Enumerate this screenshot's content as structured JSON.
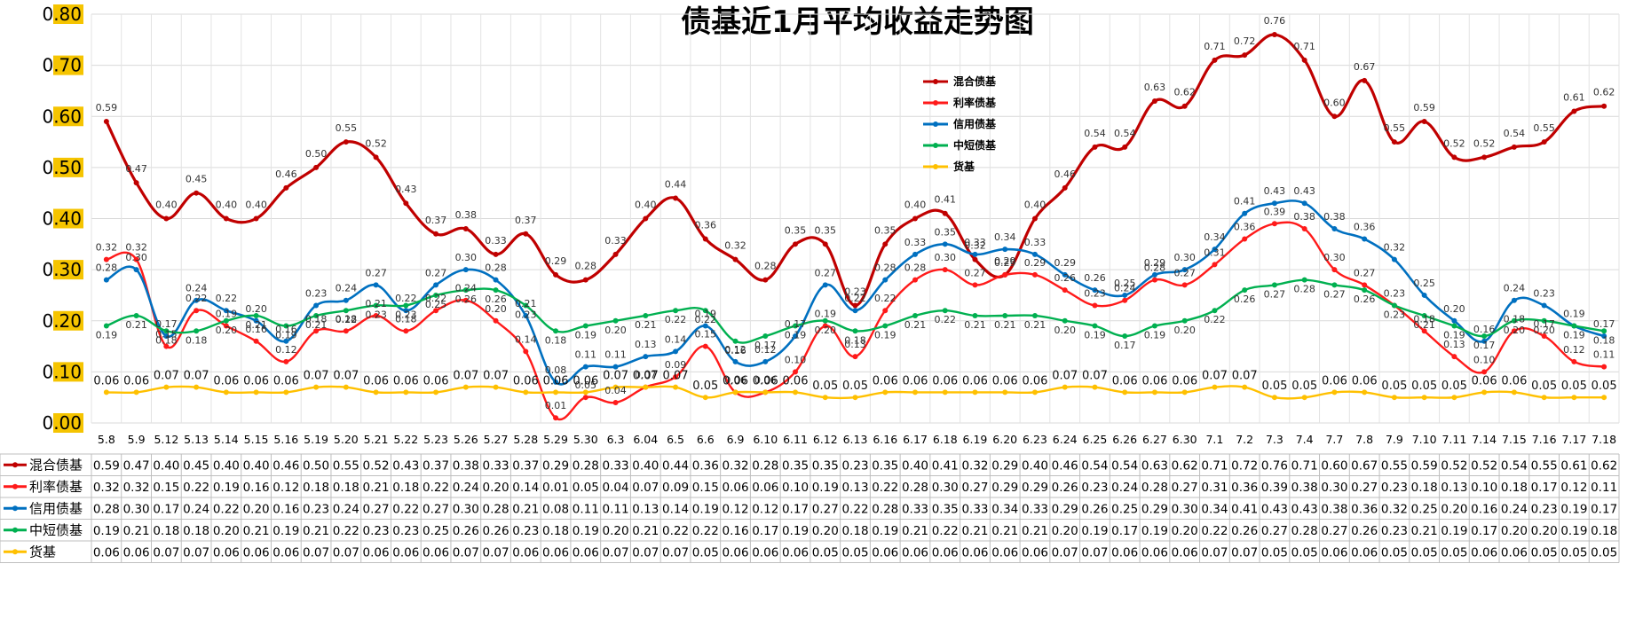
{
  "chart_data": {
    "type": "line",
    "title": "债基近1月平均收益走势图",
    "xlabel": "",
    "ylabel": "",
    "ylim": [
      0,
      0.8
    ],
    "yticks": [
      "0.00",
      "0.10",
      "0.20",
      "0.30",
      "0.40",
      "0.50",
      "0.60",
      "0.70",
      "0.80"
    ],
    "grid": true,
    "legend_position": "top-center",
    "categories": [
      "5.8",
      "5.9",
      "5.12",
      "5.13",
      "5.14",
      "5.15",
      "5.16",
      "5.19",
      "5.20",
      "5.21",
      "5.22",
      "5.23",
      "5.26",
      "5.27",
      "5.28",
      "5.29",
      "5.30",
      "6.3",
      "6.04",
      "6.5",
      "6.6",
      "6.9",
      "6.10",
      "6.11",
      "6.12",
      "6.13",
      "6.16",
      "6.17",
      "6.18",
      "6.19",
      "6.20",
      "6.23",
      "6.24",
      "6.25",
      "6.26",
      "6.27",
      "6.30",
      "7.1",
      "7.2",
      "7.3",
      "7.4",
      "7.7",
      "7.8",
      "7.9",
      "7.10",
      "7.11",
      "7.14",
      "7.15",
      "7.16",
      "7.17",
      "7.18"
    ],
    "series": [
      {
        "name": "混合债基",
        "color": "#c00000",
        "values": [
          0.59,
          0.47,
          0.4,
          0.45,
          0.4,
          0.4,
          0.46,
          0.5,
          0.55,
          0.52,
          0.43,
          0.37,
          0.38,
          0.33,
          0.37,
          0.29,
          0.28,
          0.33,
          0.4,
          0.44,
          0.36,
          0.32,
          0.28,
          0.35,
          0.35,
          0.23,
          0.35,
          0.4,
          0.41,
          0.32,
          0.29,
          0.4,
          0.46,
          0.54,
          0.54,
          0.63,
          0.62,
          0.71,
          0.72,
          0.76,
          0.71,
          0.6,
          0.67,
          0.55,
          0.59,
          0.52,
          0.52,
          0.54,
          0.55,
          0.61,
          0.62
        ]
      },
      {
        "name": "利率债基",
        "color": "#ff1a1a",
        "values": [
          0.32,
          0.32,
          0.15,
          0.22,
          0.19,
          0.16,
          0.12,
          0.18,
          0.18,
          0.21,
          0.18,
          0.22,
          0.24,
          0.2,
          0.14,
          0.01,
          0.05,
          0.04,
          0.07,
          0.09,
          0.15,
          0.06,
          0.06,
          0.1,
          0.19,
          0.13,
          0.22,
          0.28,
          0.3,
          0.27,
          0.29,
          0.29,
          0.26,
          0.23,
          0.24,
          0.28,
          0.27,
          0.31,
          0.36,
          0.39,
          0.38,
          0.3,
          0.27,
          0.23,
          0.18,
          0.13,
          0.1,
          0.18,
          0.17,
          0.12,
          0.11
        ]
      },
      {
        "name": "信用债基",
        "color": "#0070c0",
        "values": [
          0.28,
          0.3,
          0.17,
          0.24,
          0.22,
          0.2,
          0.16,
          0.23,
          0.24,
          0.27,
          0.22,
          0.27,
          0.3,
          0.28,
          0.21,
          0.08,
          0.11,
          0.11,
          0.13,
          0.14,
          0.19,
          0.12,
          0.12,
          0.17,
          0.27,
          0.22,
          0.28,
          0.33,
          0.35,
          0.33,
          0.34,
          0.33,
          0.29,
          0.26,
          0.25,
          0.29,
          0.3,
          0.34,
          0.41,
          0.43,
          0.43,
          0.38,
          0.36,
          0.32,
          0.25,
          0.2,
          0.16,
          0.24,
          0.23,
          0.19,
          0.17
        ]
      },
      {
        "name": "中短债基",
        "color": "#00b050",
        "values": [
          0.19,
          0.21,
          0.18,
          0.18,
          0.2,
          0.21,
          0.19,
          0.21,
          0.22,
          0.23,
          0.23,
          0.25,
          0.26,
          0.26,
          0.23,
          0.18,
          0.19,
          0.2,
          0.21,
          0.22,
          0.22,
          0.16,
          0.17,
          0.19,
          0.2,
          0.18,
          0.19,
          0.21,
          0.22,
          0.21,
          0.21,
          0.21,
          0.2,
          0.19,
          0.17,
          0.19,
          0.2,
          0.22,
          0.26,
          0.27,
          0.28,
          0.27,
          0.26,
          0.23,
          0.21,
          0.19,
          0.17,
          0.2,
          0.2,
          0.19,
          0.18
        ]
      },
      {
        "name": "货基",
        "color": "#ffc000",
        "values": [
          0.06,
          0.06,
          0.07,
          0.07,
          0.06,
          0.06,
          0.06,
          0.07,
          0.07,
          0.06,
          0.06,
          0.06,
          0.07,
          0.07,
          0.06,
          0.06,
          0.06,
          0.07,
          0.07,
          0.07,
          0.05,
          0.06,
          0.06,
          0.06,
          0.05,
          0.05,
          0.06,
          0.06,
          0.06,
          0.06,
          0.06,
          0.06,
          0.07,
          0.07,
          0.06,
          0.06,
          0.06,
          0.07,
          0.07,
          0.05,
          0.05,
          0.06,
          0.06,
          0.05,
          0.05,
          0.05,
          0.06,
          0.06,
          0.05,
          0.05,
          0.05
        ]
      }
    ]
  }
}
